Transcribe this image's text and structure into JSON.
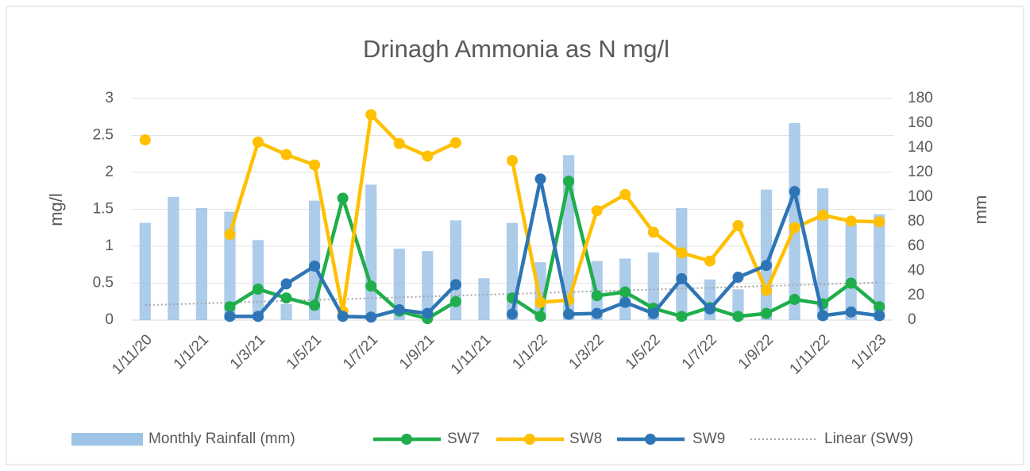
{
  "chart_data": {
    "type": "line",
    "title": "Drinagh Ammonia as N mg/l",
    "y_label": "mg/l",
    "y2_label": "mm",
    "categories": [
      "1/11/20",
      null,
      "1/1/21",
      null,
      "1/3/21",
      null,
      "1/5/21",
      null,
      "1/7/21",
      null,
      "1/9/21",
      null,
      "1/11/21",
      null,
      "1/1/22",
      null,
      "1/3/22",
      null,
      "1/5/22",
      null,
      "1/7/22",
      null,
      "1/9/22",
      null,
      "1/11/22",
      null,
      "1/1/23"
    ],
    "series": [
      {
        "name": "Monthly Rainfall (mm)",
        "type": "bar",
        "axis": "y2",
        "color": "#9dc3e6",
        "values": [
          79,
          100,
          91,
          88,
          65,
          13,
          97,
          null,
          110,
          58,
          56,
          81,
          34,
          79,
          47,
          134,
          48,
          50,
          55,
          91,
          33,
          25,
          106,
          160,
          107,
          78,
          86
        ]
      },
      {
        "name": "SW7",
        "color": "#1fae4b",
        "values": [
          null,
          null,
          null,
          0.18,
          0.42,
          0.3,
          0.2,
          1.65,
          0.46,
          0.12,
          0.02,
          0.25,
          null,
          0.3,
          0.05,
          1.88,
          0.33,
          0.38,
          0.16,
          0.05,
          0.17,
          0.05,
          0.09,
          0.28,
          0.22,
          0.5,
          0.18
        ]
      },
      {
        "name": "SW8",
        "color": "#ffc000",
        "values": [
          2.44,
          null,
          null,
          1.16,
          2.41,
          2.24,
          2.1,
          0.12,
          2.78,
          2.39,
          2.22,
          2.4,
          null,
          2.16,
          0.24,
          0.27,
          1.48,
          1.7,
          1.19,
          0.91,
          0.8,
          1.28,
          0.4,
          1.25,
          1.42,
          1.34,
          1.33
        ]
      },
      {
        "name": "SW9",
        "color": "#2e75b6",
        "values": [
          null,
          null,
          null,
          0.05,
          0.05,
          0.49,
          0.73,
          0.05,
          0.04,
          0.14,
          0.09,
          0.48,
          null,
          0.08,
          1.91,
          0.08,
          0.09,
          0.24,
          0.09,
          0.56,
          0.15,
          0.58,
          0.74,
          1.74,
          0.06,
          0.11,
          0.06
        ]
      }
    ],
    "trendline": {
      "name": "Linear (SW9)",
      "color": "#a6a6a6"
    },
    "ylim": [
      0,
      3
    ],
    "yticks": [
      0,
      0.5,
      1,
      1.5,
      2,
      2.5,
      3
    ],
    "y2lim": [
      0,
      180
    ],
    "y2ticks": [
      0,
      20,
      40,
      60,
      80,
      100,
      120,
      140,
      160,
      180
    ],
    "grid": true
  }
}
